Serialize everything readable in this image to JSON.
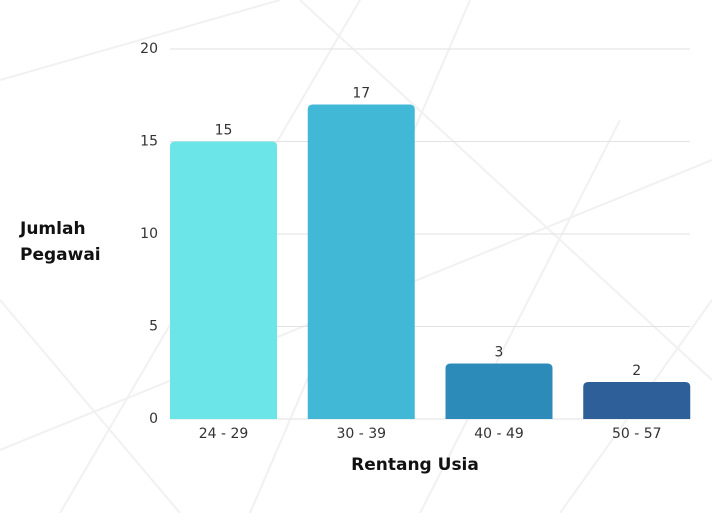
{
  "chart_data": {
    "type": "bar",
    "categories": [
      "24 - 29",
      "30 - 39",
      "40 - 49",
      "50 - 57"
    ],
    "values": [
      15,
      17,
      3,
      2
    ],
    "colors": [
      "#6ce5e8",
      "#41b8d5",
      "#2d8bba",
      "#2f5f98"
    ],
    "ylabel": "Jumlah Pegawai",
    "xlabel": "Rentang Usia",
    "ylim": [
      0,
      20
    ],
    "yticks": [
      0,
      5,
      10,
      15,
      20
    ],
    "grid": true
  }
}
